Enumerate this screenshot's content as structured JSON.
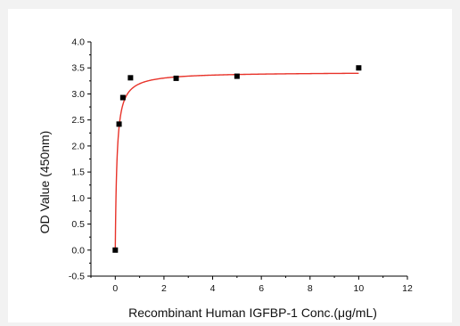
{
  "chart_data": {
    "type": "scatter",
    "title": "",
    "xlabel": "Recombinant Human IGFBP-1 Conc.(μg/mL)",
    "ylabel": "OD Value (450nm)",
    "xlim": [
      -1,
      12
    ],
    "ylim": [
      -0.5,
      4.0
    ],
    "xticks": [
      0,
      2,
      4,
      6,
      8,
      10,
      12
    ],
    "xtick_labels": [
      "0",
      "2",
      "4",
      "6",
      "8",
      "10",
      "12"
    ],
    "yticks": [
      -0.5,
      0.0,
      0.5,
      1.0,
      1.5,
      2.0,
      2.5,
      3.0,
      3.5,
      4.0
    ],
    "ytick_labels": [
      "-0.5",
      "0.0",
      "0.5",
      "1.0",
      "1.5",
      "2.0",
      "2.5",
      "3.0",
      "3.5",
      "4.0"
    ],
    "series": [
      {
        "type": "scatter",
        "marker": "square",
        "color": "#000000",
        "x": [
          0,
          0.156,
          0.3125,
          0.625,
          2.5,
          5,
          10
        ],
        "y": [
          0.0,
          2.42,
          2.93,
          3.31,
          3.3,
          3.34,
          3.5
        ]
      },
      {
        "type": "line",
        "color": "#e8332a",
        "fit": {
          "model": "hyperbolic",
          "bmax": 3.42,
          "kd": 0.07
        },
        "x_range": [
          0,
          10
        ]
      }
    ],
    "grid": false,
    "legend": "none"
  }
}
